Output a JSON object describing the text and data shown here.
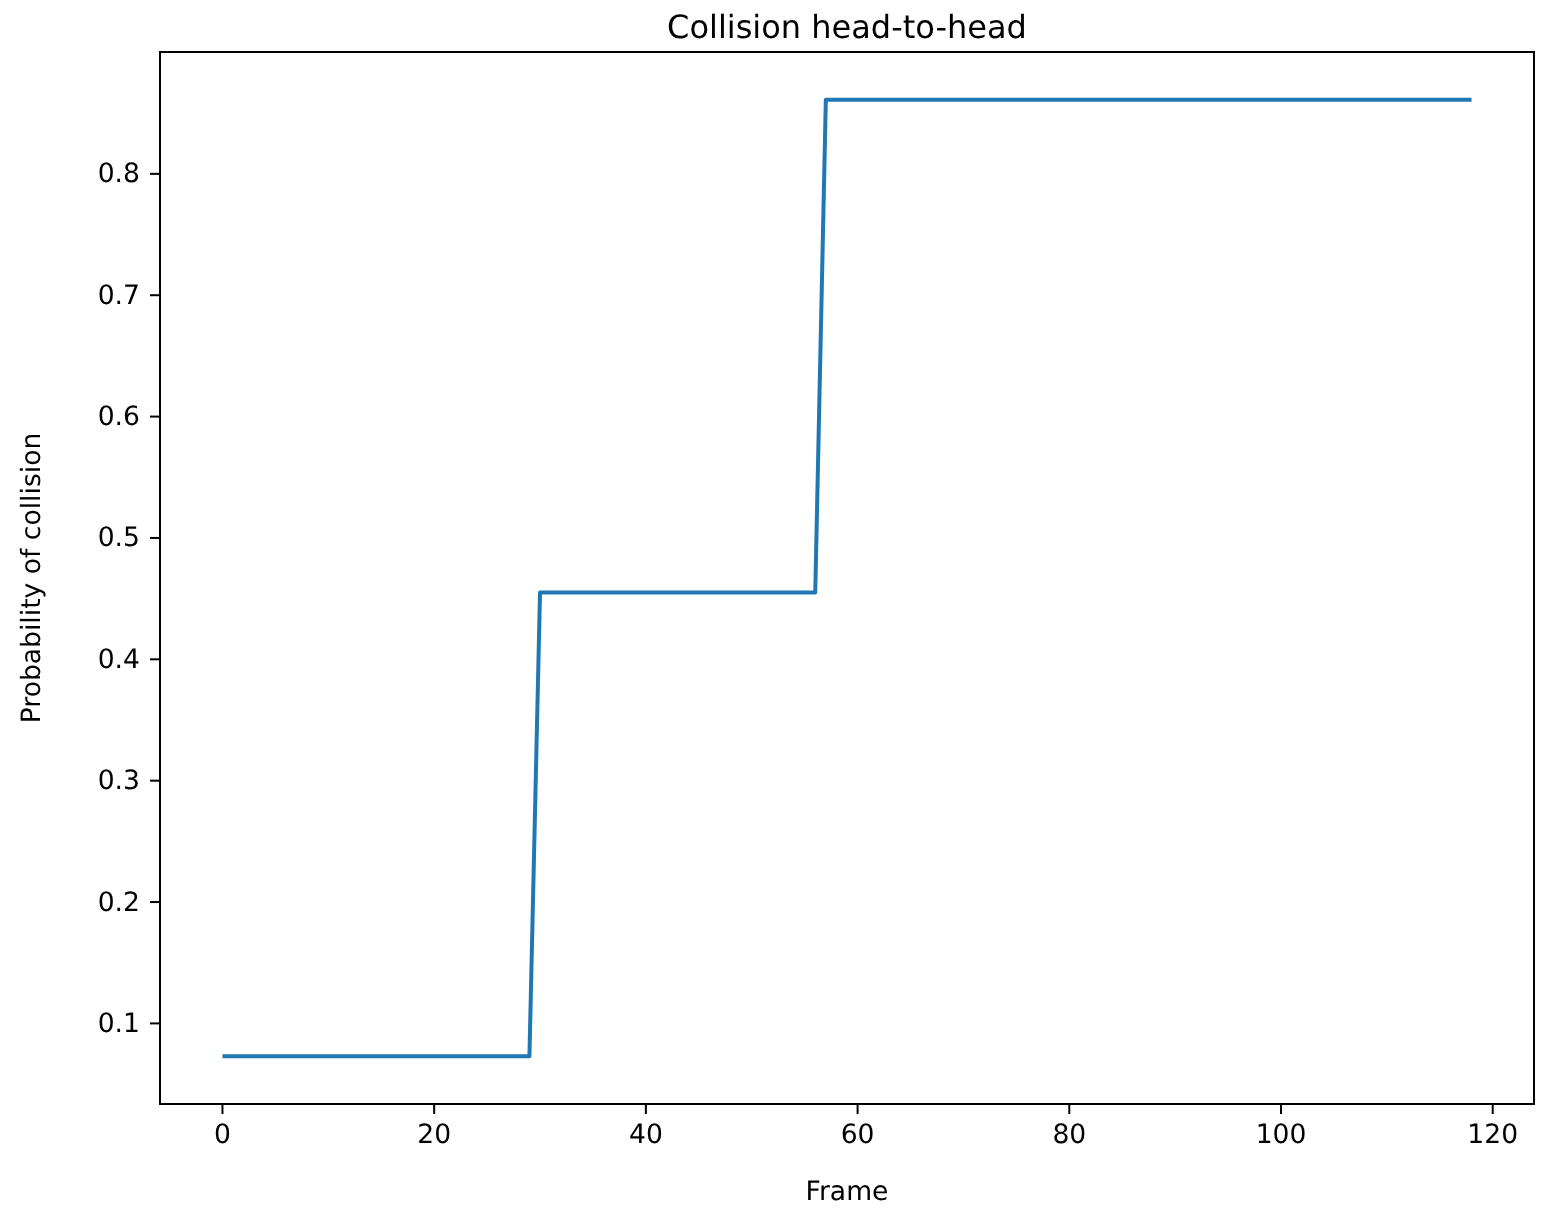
{
  "chart_data": {
    "type": "line",
    "title": "Collision head-to-head",
    "xlabel": "Frame",
    "ylabel": "Probability of collision",
    "x": [
      0,
      29,
      30,
      56,
      57,
      118
    ],
    "series": [
      {
        "color": "#1f77b4",
        "values": [
          0.073,
          0.073,
          0.455,
          0.455,
          0.861,
          0.861
        ]
      }
    ],
    "xlim": [
      -5.9,
      123.9
    ],
    "ylim": [
      0.0336,
      0.9004
    ],
    "xticks": [
      0,
      20,
      40,
      60,
      80,
      100,
      120
    ],
    "yticks": [
      0.1,
      0.2,
      0.3,
      0.4,
      0.5,
      0.6,
      0.7,
      0.8
    ],
    "grid": false,
    "marker": "none",
    "line_style": "solid"
  }
}
